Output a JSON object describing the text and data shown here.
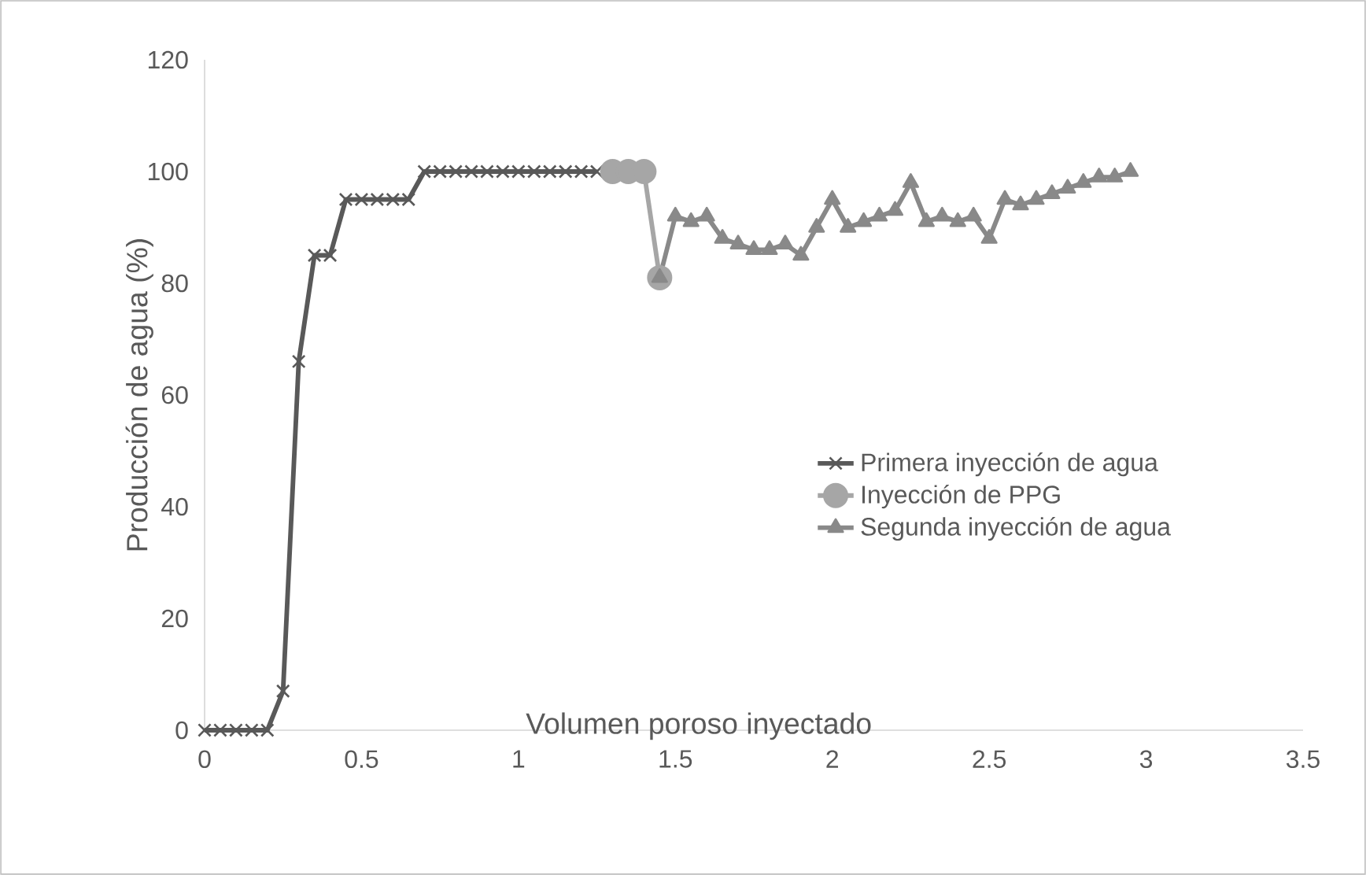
{
  "chart_data": {
    "type": "line",
    "xlabel": "Volumen poroso inyectado",
    "ylabel": "Producción de agua (%)",
    "xlim": [
      0,
      3.5
    ],
    "xticks": [
      0,
      0.5,
      1,
      1.5,
      2,
      2.5,
      3,
      3.5
    ],
    "ylim": [
      0,
      120
    ],
    "yticks": [
      0,
      20,
      40,
      60,
      80,
      100,
      120
    ],
    "grid": false,
    "legend": "right",
    "series": [
      {
        "name": "Primera inyección de agua",
        "color": "#595959",
        "marker": "cross",
        "x": [
          0,
          0.05,
          0.1,
          0.15,
          0.2,
          0.25,
          0.3,
          0.35,
          0.4,
          0.45,
          0.5,
          0.55,
          0.6,
          0.65,
          0.7,
          0.75,
          0.8,
          0.85,
          0.9,
          0.95,
          1.0,
          1.05,
          1.1,
          1.15,
          1.2,
          1.25
        ],
        "values": [
          0,
          0,
          0,
          0,
          0,
          7,
          66,
          85,
          85,
          95,
          95,
          95,
          95,
          95,
          100,
          100,
          100,
          100,
          100,
          100,
          100,
          100,
          100,
          100,
          100,
          100
        ]
      },
      {
        "name": "Inyección de PPG",
        "color": "#a6a6a6",
        "marker": "circle",
        "x": [
          1.3,
          1.35,
          1.4,
          1.45
        ],
        "values": [
          100,
          100,
          100,
          81
        ]
      },
      {
        "name": "Segunda inyección de agua",
        "color": "#898989",
        "marker": "triangle",
        "x": [
          1.45,
          1.5,
          1.55,
          1.6,
          1.65,
          1.7,
          1.75,
          1.8,
          1.85,
          1.9,
          1.95,
          2.0,
          2.05,
          2.1,
          2.15,
          2.2,
          2.25,
          2.3,
          2.35,
          2.4,
          2.45,
          2.5,
          2.55,
          2.6,
          2.65,
          2.7,
          2.75,
          2.8,
          2.85,
          2.9,
          2.95
        ],
        "values": [
          81,
          92,
          91,
          92,
          88,
          87,
          86,
          86,
          87,
          85,
          90,
          95,
          90,
          91,
          92,
          93,
          98,
          91,
          92,
          91,
          92,
          88,
          95,
          94,
          95,
          96,
          97,
          98,
          99,
          99,
          100
        ]
      }
    ]
  }
}
